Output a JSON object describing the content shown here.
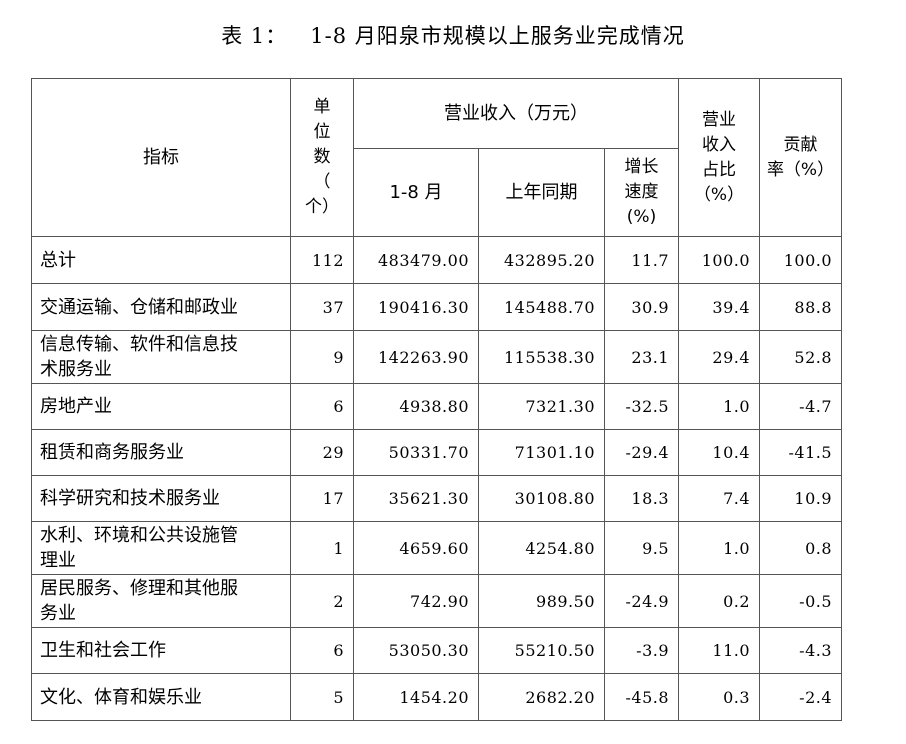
{
  "title": "表 1：   1-8 月阳泉市规模以上服务业完成情况",
  "headers": {
    "indicator": "指标",
    "units_lines": [
      "单",
      "位",
      "数",
      "（",
      "个）"
    ],
    "revenue_group": "营业收入（万元）",
    "period": "1-8 月",
    "prior_period": "上年同期",
    "growth_lines": [
      "增长",
      "速度",
      "(%)"
    ],
    "share_lines": [
      "营业",
      "收入",
      "占比",
      "（%）"
    ],
    "contribution_lines": [
      "贡献",
      "率（%）"
    ]
  },
  "rows": [
    {
      "name_lines": [
        "总计"
      ],
      "units": "112",
      "revenue": "483479.00",
      "prior": "432895.20",
      "growth": "11.7",
      "share": "100.0",
      "contribution": "100.0"
    },
    {
      "name_lines": [
        "交通运输、仓储和邮政业"
      ],
      "units": "37",
      "revenue": "190416.30",
      "prior": "145488.70",
      "growth": "30.9",
      "share": "39.4",
      "contribution": "88.8"
    },
    {
      "name_lines": [
        "信息传输、软件和信息技",
        "术服务业"
      ],
      "units": "9",
      "revenue": "142263.90",
      "prior": "115538.30",
      "growth": "23.1",
      "share": "29.4",
      "contribution": "52.8"
    },
    {
      "name_lines": [
        "房地产业"
      ],
      "units": "6",
      "revenue": "4938.80",
      "prior": "7321.30",
      "growth": "-32.5",
      "share": "1.0",
      "contribution": "-4.7"
    },
    {
      "name_lines": [
        "租赁和商务服务业"
      ],
      "units": "29",
      "revenue": "50331.70",
      "prior": "71301.10",
      "growth": "-29.4",
      "share": "10.4",
      "contribution": "-41.5"
    },
    {
      "name_lines": [
        "科学研究和技术服务业"
      ],
      "units": "17",
      "revenue": "35621.30",
      "prior": "30108.80",
      "growth": "18.3",
      "share": "7.4",
      "contribution": "10.9"
    },
    {
      "name_lines": [
        "水利、环境和公共设施管",
        "理业"
      ],
      "units": "1",
      "revenue": "4659.60",
      "prior": "4254.80",
      "growth": "9.5",
      "share": "1.0",
      "contribution": "0.8"
    },
    {
      "name_lines": [
        "居民服务、修理和其他服",
        "务业"
      ],
      "units": "2",
      "revenue": "742.90",
      "prior": "989.50",
      "growth": "-24.9",
      "share": "0.2",
      "contribution": "-0.5"
    },
    {
      "name_lines": [
        "卫生和社会工作"
      ],
      "units": "6",
      "revenue": "53050.30",
      "prior": "55210.50",
      "growth": "-3.9",
      "share": "11.0",
      "contribution": "-4.3"
    },
    {
      "name_lines": [
        "文化、体育和娱乐业"
      ],
      "units": "5",
      "revenue": "1454.20",
      "prior": "2682.20",
      "growth": "-45.8",
      "share": "0.3",
      "contribution": "-2.4"
    }
  ]
}
